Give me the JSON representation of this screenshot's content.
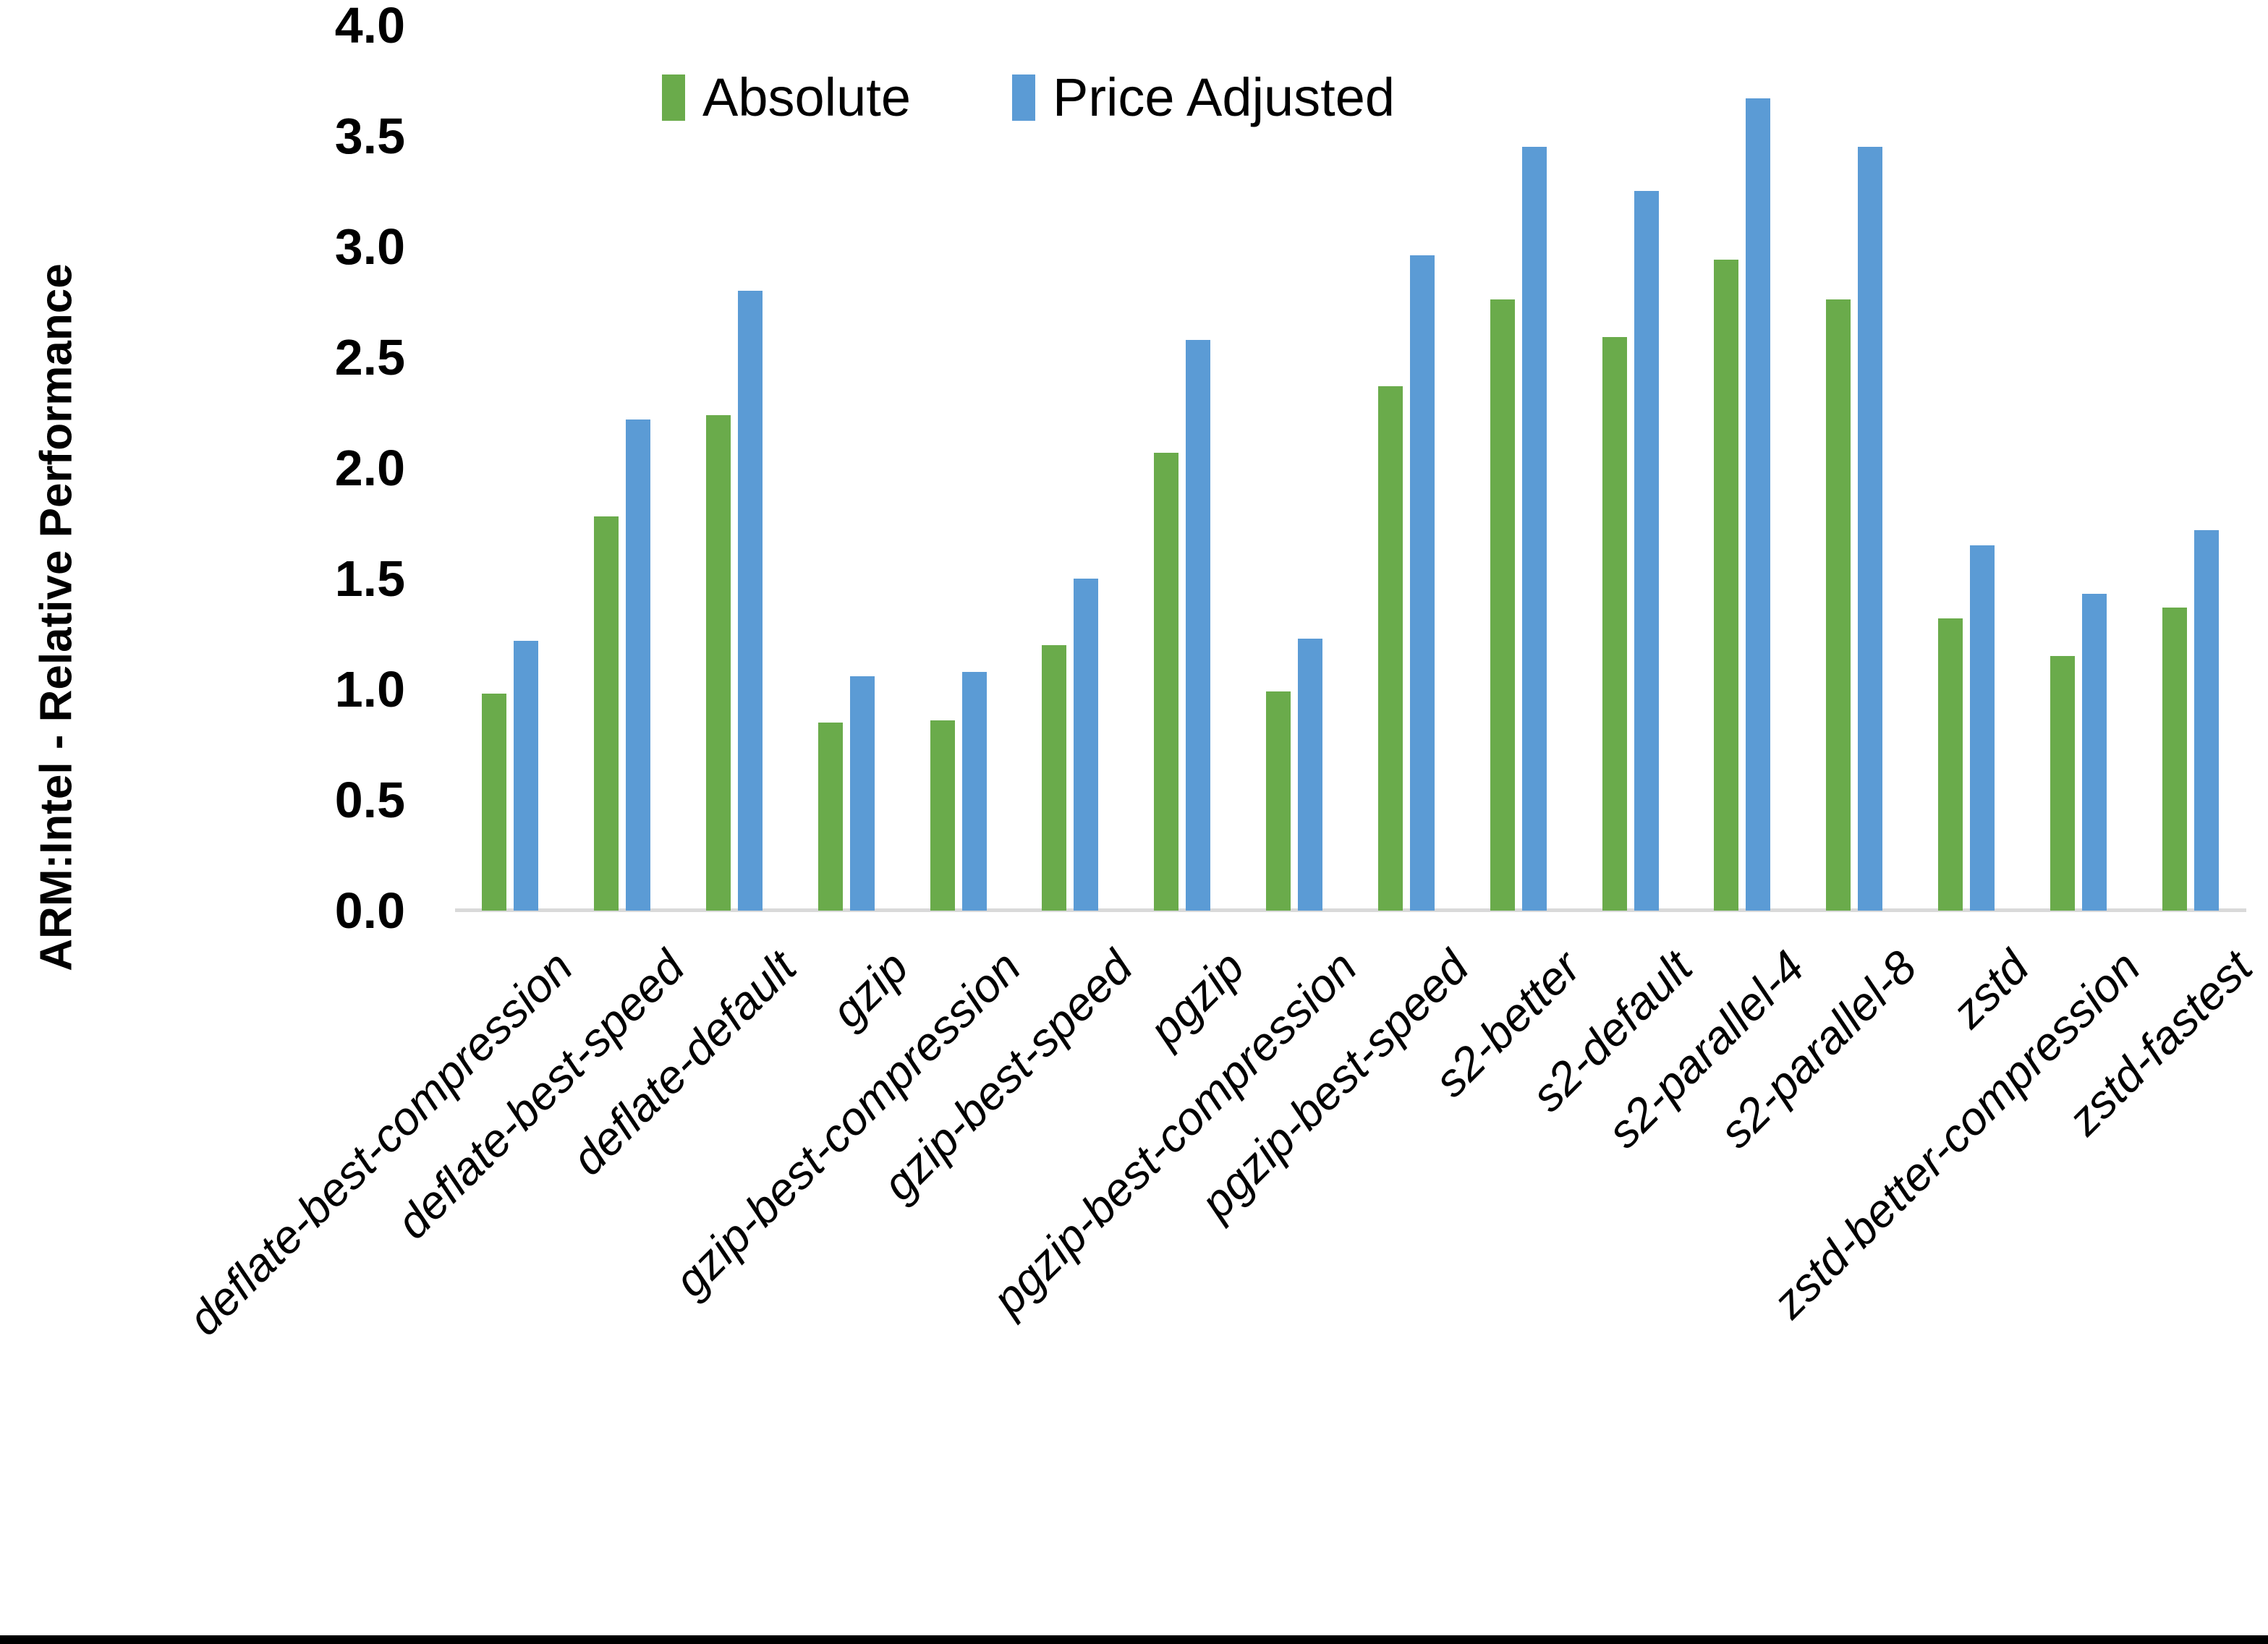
{
  "chart_data": {
    "type": "bar",
    "title": "",
    "ylabel": "ARM:Intel - Relative Performance",
    "xlabel": "",
    "ylim": [
      0.0,
      4.0
    ],
    "ytick_step": 0.5,
    "ytick_labels": [
      "0.0",
      "0.5",
      "1.0",
      "1.5",
      "2.0",
      "2.5",
      "3.0",
      "3.5",
      "4.0"
    ],
    "grid": false,
    "legend_position": "top-center",
    "categories": [
      "deflate-best-compression",
      "deflate-best-speed",
      "deflate-default",
      "gzip",
      "gzip-best-compression",
      "gzip-best-speed",
      "pgzip",
      "pgzip-best-compression",
      "pgzip-best-speed",
      "s2-better",
      "s2-default",
      "s2-parallel-4",
      "s2-parallel-8",
      "zstd",
      "zstd-better-compression",
      "zstd-fastest"
    ],
    "series": [
      {
        "name": "Absolute",
        "color": "#6AAB4B",
        "values": [
          0.98,
          1.78,
          2.24,
          0.85,
          0.86,
          1.2,
          2.07,
          0.99,
          2.37,
          2.76,
          2.59,
          2.94,
          2.76,
          1.32,
          1.15,
          1.37
        ]
      },
      {
        "name": "Price Adjusted",
        "color": "#5B9BD5",
        "values": [
          1.22,
          2.22,
          2.8,
          1.06,
          1.08,
          1.5,
          2.58,
          1.23,
          2.96,
          3.45,
          3.25,
          3.67,
          3.45,
          1.65,
          1.43,
          1.72
        ]
      }
    ]
  },
  "colors": {
    "background": "#FFFFFF",
    "axis_line": "#D9D9D9",
    "text": "#000000",
    "bottom_border": "#000000"
  }
}
